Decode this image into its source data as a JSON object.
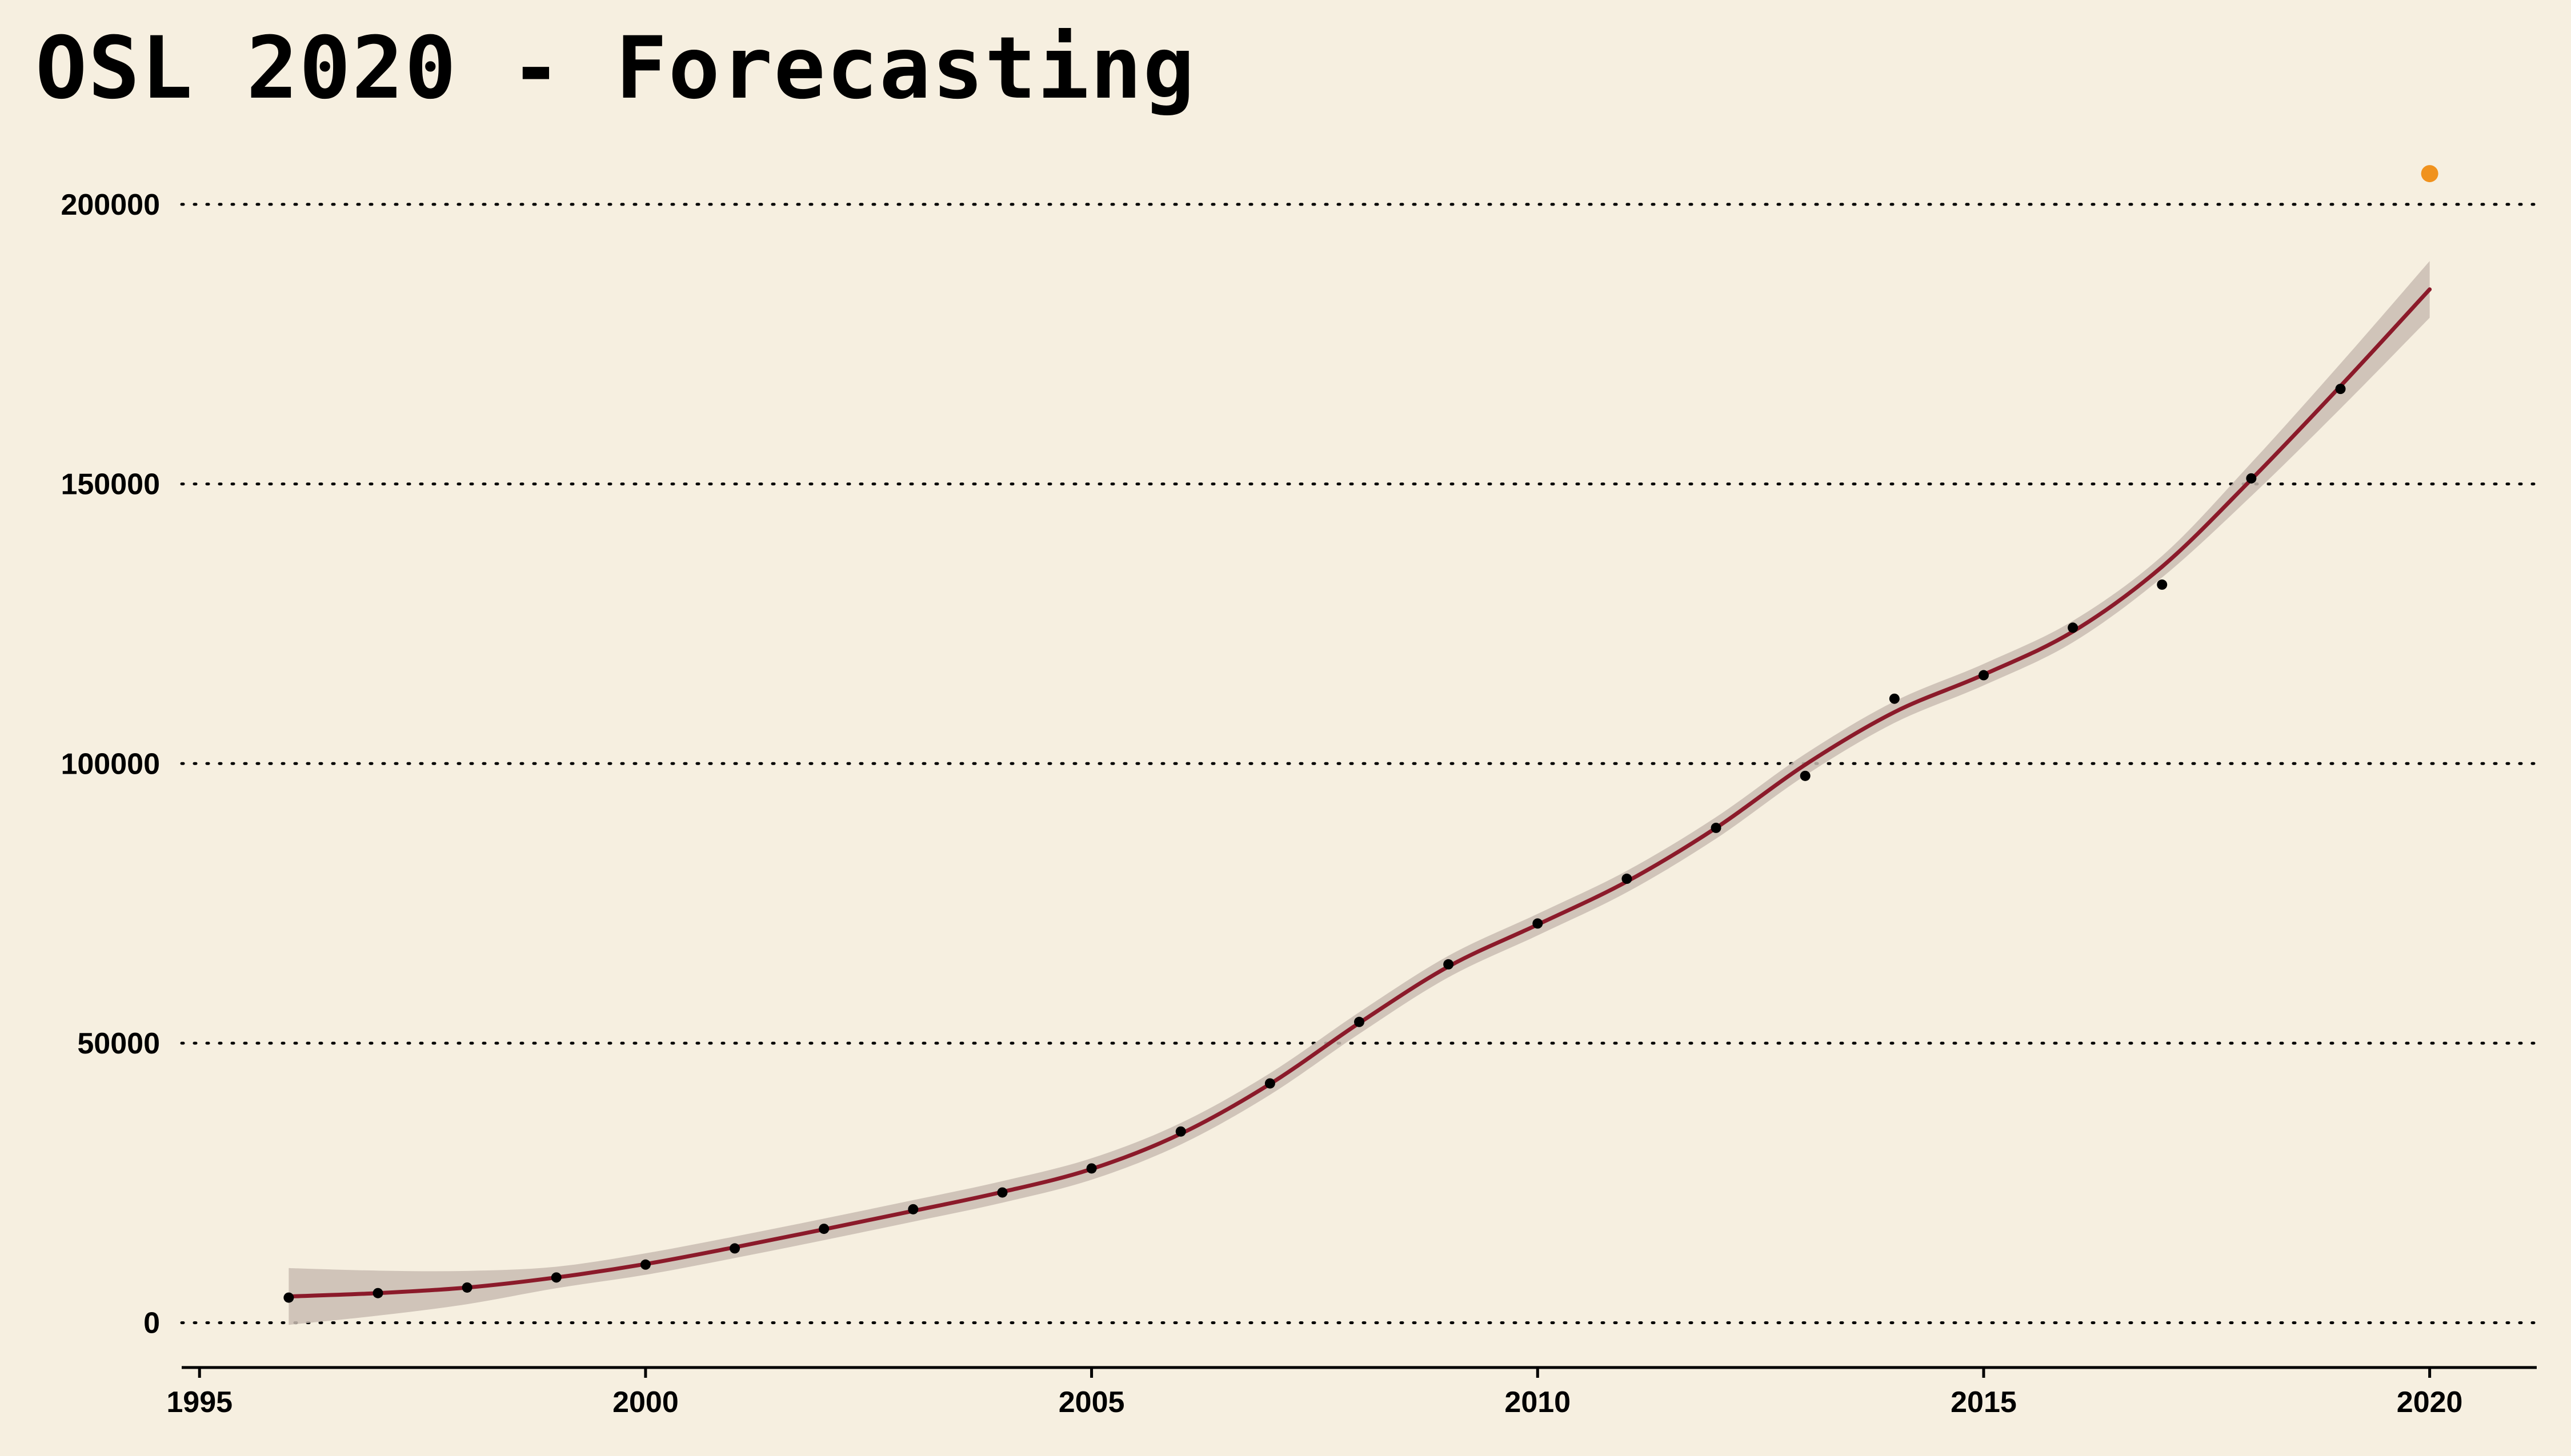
{
  "chart_data": {
    "type": "line",
    "title": "OSL 2020 - Forecasting",
    "xlabel": "",
    "ylabel": "",
    "xlim": [
      1994.8,
      2021.2
    ],
    "ylim": [
      -8000,
      210000
    ],
    "x_ticks": [
      1995,
      2000,
      2005,
      2010,
      2015,
      2020
    ],
    "y_ticks": [
      0,
      50000,
      100000,
      150000,
      200000
    ],
    "grid": "horizontal-dotted",
    "series": [
      {
        "name": "",
        "kind": "observed-points",
        "x": [
          1996,
          1997,
          1998,
          1999,
          2000,
          2001,
          2002,
          2003,
          2004,
          2005,
          2006,
          2007,
          2008,
          2009,
          2010,
          2011,
          2012,
          2013,
          2014,
          2015,
          2016,
          2017,
          2018,
          2019
        ],
        "y": [
          4500,
          5300,
          6300,
          8100,
          10400,
          13300,
          16800,
          20300,
          23300,
          27600,
          34200,
          42800,
          53800,
          64100,
          71400,
          79400,
          88500,
          97800,
          111600,
          115800,
          124300,
          132000,
          151000,
          167000
        ]
      },
      {
        "name": "",
        "kind": "fitted-curve",
        "x": [
          1996,
          1997,
          1998,
          1999,
          2000,
          2001,
          2002,
          2003,
          2004,
          2005,
          2006,
          2007,
          2008,
          2009,
          2010,
          2011,
          2012,
          2013,
          2014,
          2015,
          2016,
          2017,
          2018,
          2019,
          2020
        ],
        "y": [
          4700,
          5300,
          6300,
          8100,
          10500,
          13500,
          16700,
          20000,
          23400,
          27500,
          33800,
          42700,
          53600,
          63700,
          71200,
          78900,
          88500,
          99800,
          109200,
          115900,
          123600,
          135200,
          150800,
          167500,
          184800
        ],
        "band": 3500
      },
      {
        "name": "",
        "kind": "forecast-point",
        "x": [
          2020
        ],
        "y": [
          205500
        ]
      }
    ],
    "colors": {
      "background": "#f6efe0",
      "points": "#000000",
      "fit_line": "#8b1a2a",
      "band": "#c9bcb2",
      "forecast": "#f0921e",
      "grid": "#000000"
    }
  }
}
